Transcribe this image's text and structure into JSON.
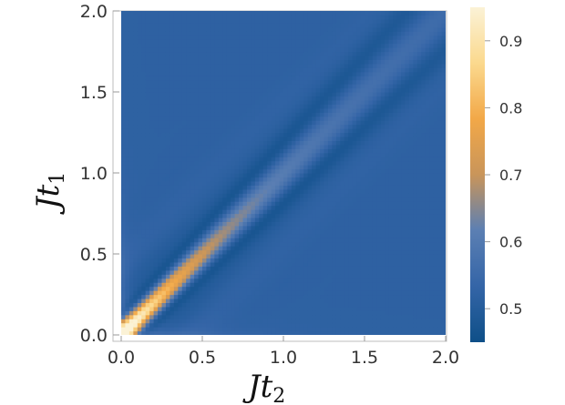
{
  "chart_data": {
    "type": "heatmap",
    "title": "",
    "xlabel": "Jt2",
    "xlabel_main": "Jt",
    "xlabel_sub": "2",
    "ylabel": "Jt1",
    "ylabel_main": "Jt",
    "ylabel_sub": "1",
    "xlim": [
      0.0,
      2.0
    ],
    "ylim": [
      0.0,
      2.0
    ],
    "x_ticks": [
      0.0,
      0.5,
      1.0,
      1.5,
      2.0
    ],
    "y_ticks": [
      0.0,
      0.5,
      1.0,
      1.5,
      2.0
    ],
    "x_tick_labels": [
      "0.0",
      "0.5",
      "1.0",
      "1.5",
      "2.0"
    ],
    "y_tick_labels": [
      "0.0",
      "0.5",
      "1.0",
      "1.5",
      "2.0"
    ],
    "colorbar": {
      "range": [
        0.45,
        0.95
      ],
      "ticks": [
        0.5,
        0.6,
        0.7,
        0.8,
        0.9
      ],
      "tick_labels": [
        "0.5",
        "0.6",
        "0.7",
        "0.8",
        "0.9"
      ],
      "colors": [
        "#0e4f88",
        "#3465a7",
        "#5b7fb3",
        "#c9955a",
        "#f2a848",
        "#fbd98e",
        "#fbf2d6"
      ]
    },
    "background_value": 0.52,
    "features": [
      {
        "name": "diagonal-ridge",
        "description": "bright band along t1 = t2, strongest near origin",
        "peak": 0.95,
        "decay": 0.4
      },
      {
        "name": "side-troughs",
        "description": "dark bands parallel to diagonal",
        "min": 0.45
      }
    ]
  }
}
